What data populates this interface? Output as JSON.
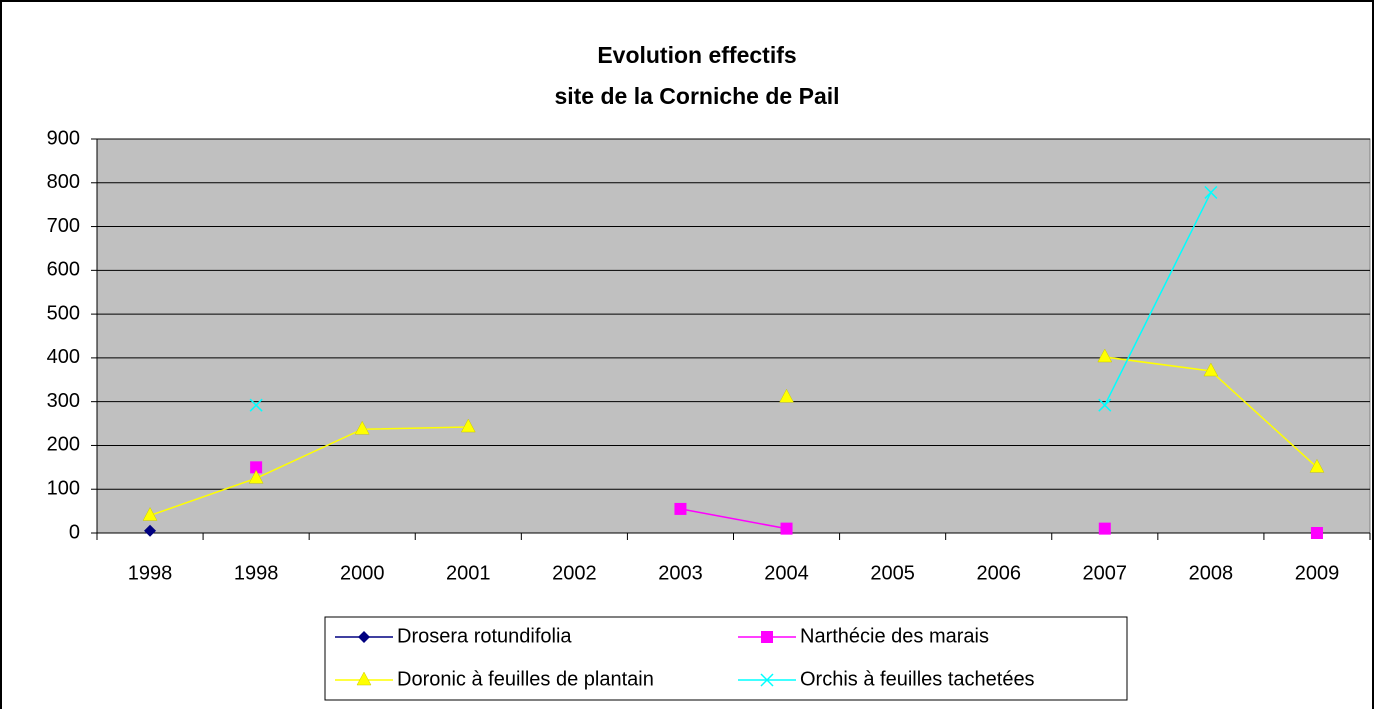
{
  "chart_data": {
    "type": "line",
    "title": [
      "Evolution effectifs",
      "site de la Corniche de Pail"
    ],
    "categories": [
      "1998",
      "1998",
      "2000",
      "2001",
      "2002",
      "2003",
      "2004",
      "2005",
      "2006",
      "2007",
      "2008",
      "2009"
    ],
    "series": [
      {
        "name": "Drosera rotundifolia",
        "color": "#000080",
        "marker": "diamond",
        "values": [
          5,
          null,
          null,
          null,
          null,
          null,
          null,
          null,
          null,
          null,
          null,
          null
        ]
      },
      {
        "name": "Narthécie des marais",
        "color": "#ff00ff",
        "marker": "square",
        "values": [
          null,
          150,
          null,
          null,
          null,
          55,
          10,
          null,
          null,
          10,
          null,
          0
        ]
      },
      {
        "name": "Doronic à feuilles de plantain",
        "color": "#ffff00",
        "marker": "triangle",
        "values": [
          40,
          125,
          237,
          242,
          null,
          null,
          310,
          null,
          null,
          402,
          370,
          150
        ]
      },
      {
        "name": "Orchis à feuilles tachetées",
        "color": "#00ffff",
        "marker": "x",
        "values": [
          null,
          292,
          null,
          null,
          null,
          null,
          null,
          null,
          null,
          292,
          778,
          null
        ]
      }
    ],
    "ylim": [
      0,
      900
    ],
    "yticks": [
      0,
      100,
      200,
      300,
      400,
      500,
      600,
      700,
      800,
      900
    ],
    "grid": true,
    "legend": "bottom"
  }
}
